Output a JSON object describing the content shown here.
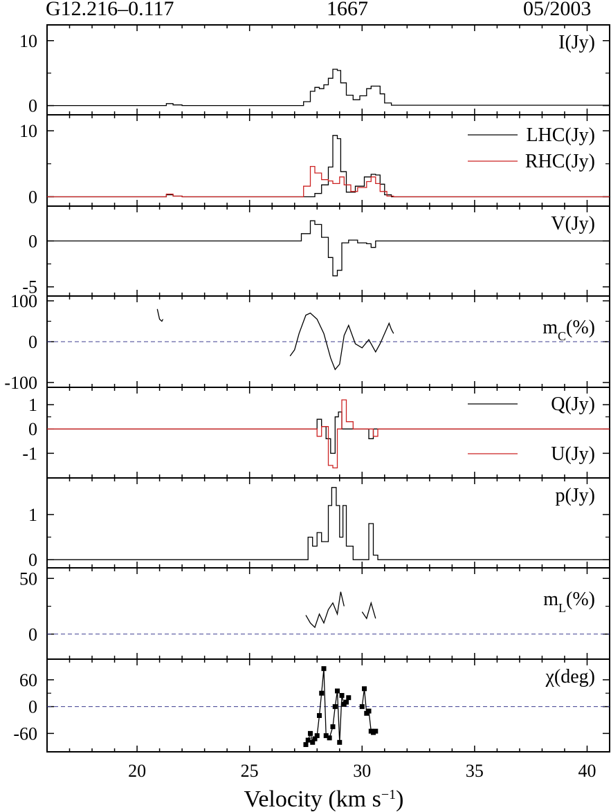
{
  "header": {
    "source": "G12.216–0.117",
    "frequency": "1667",
    "date": "05/2003"
  },
  "x_axis": {
    "label_main": "Velocity (km s",
    "label_sup": "−1",
    "label_close": ")",
    "ticks": [
      "20",
      "25",
      "30",
      "35",
      "40"
    ]
  },
  "colors": {
    "black": "#000000",
    "red": "#cc2222",
    "dash": "#3b3b8f"
  },
  "chart_data": [
    {
      "type": "line",
      "panel": "I",
      "label": "I(Jy)",
      "ylim": [
        -1,
        12
      ],
      "yticks": [
        {
          "v": 0,
          "t": "0"
        },
        {
          "v": 10,
          "t": "10"
        }
      ],
      "series": [
        {
          "name": "I(Jy)",
          "color": "black",
          "points": [
            [
              16,
              0
            ],
            [
              21,
              0
            ],
            [
              21.3,
              0.3
            ],
            [
              21.6,
              0.1
            ],
            [
              22,
              0
            ],
            [
              27,
              0
            ],
            [
              27.4,
              0.6
            ],
            [
              27.7,
              2.2
            ],
            [
              27.9,
              2.8
            ],
            [
              28.1,
              2.6
            ],
            [
              28.3,
              3.2
            ],
            [
              28.5,
              4.2
            ],
            [
              28.7,
              5.6
            ],
            [
              28.9,
              5.4
            ],
            [
              29.05,
              3.5
            ],
            [
              29.3,
              1.6
            ],
            [
              29.6,
              0.9
            ],
            [
              29.9,
              1.5
            ],
            [
              30.2,
              2.6
            ],
            [
              30.4,
              3.0
            ],
            [
              30.6,
              3.0
            ],
            [
              30.8,
              1.8
            ],
            [
              31.0,
              0.4
            ],
            [
              31.3,
              0.05
            ],
            [
              41,
              0
            ]
          ]
        }
      ],
      "hline": null
    },
    {
      "type": "line",
      "panel": "LHC-RHC",
      "ylim": [
        -1,
        12
      ],
      "yticks": [
        {
          "v": 0,
          "t": "0"
        },
        {
          "v": 10,
          "t": "10"
        }
      ],
      "series": [
        {
          "name": "LHC(Jy)",
          "color": "black",
          "points": [
            [
              16,
              0
            ],
            [
              21.1,
              0
            ],
            [
              21.3,
              0.3
            ],
            [
              21.6,
              0.1
            ],
            [
              22,
              0
            ],
            [
              27.5,
              0
            ],
            [
              27.9,
              0.5
            ],
            [
              28.2,
              1.8
            ],
            [
              28.5,
              4.5
            ],
            [
              28.7,
              9.3
            ],
            [
              28.9,
              8.8
            ],
            [
              29.05,
              3.8
            ],
            [
              29.3,
              0.7
            ],
            [
              29.7,
              1.6
            ],
            [
              30.1,
              3.0
            ],
            [
              30.4,
              3.4
            ],
            [
              30.6,
              3.3
            ],
            [
              30.8,
              1.9
            ],
            [
              31.0,
              0.3
            ],
            [
              31.3,
              0
            ],
            [
              41,
              0
            ]
          ]
        },
        {
          "name": "RHC(Jy)",
          "color": "red",
          "points": [
            [
              16,
              0
            ],
            [
              21.1,
              0
            ],
            [
              21.3,
              0.4
            ],
            [
              21.6,
              0.1
            ],
            [
              22,
              0
            ],
            [
              27,
              0
            ],
            [
              27.4,
              1.6
            ],
            [
              27.7,
              4.6
            ],
            [
              27.9,
              3.6
            ],
            [
              28.2,
              2.6
            ],
            [
              28.5,
              2.4
            ],
            [
              28.7,
              2.0
            ],
            [
              29.0,
              3.0
            ],
            [
              29.2,
              1.8
            ],
            [
              29.5,
              0.8
            ],
            [
              29.8,
              1.4
            ],
            [
              30.2,
              2.3
            ],
            [
              30.4,
              3.0
            ],
            [
              30.6,
              2.0
            ],
            [
              30.8,
              0.8
            ],
            [
              31.1,
              0.1
            ],
            [
              31.4,
              0
            ],
            [
              41,
              0
            ]
          ]
        }
      ],
      "legend": [
        {
          "name": "LHC(Jy)",
          "color": "black"
        },
        {
          "name": "RHC(Jy)",
          "color": "red"
        }
      ],
      "hline": null
    },
    {
      "type": "line",
      "panel": "V",
      "label": "V(Jy)",
      "ylim": [
        -5.7,
        3.5
      ],
      "yticks": [
        {
          "v": 0,
          "t": "0"
        },
        {
          "v": -5,
          "t": "-5"
        }
      ],
      "series": [
        {
          "name": "V(Jy)",
          "color": "black",
          "points": [
            [
              16,
              0
            ],
            [
              27,
              0
            ],
            [
              27.3,
              0.8
            ],
            [
              27.7,
              2.2
            ],
            [
              27.9,
              1.8
            ],
            [
              28.2,
              0.4
            ],
            [
              28.5,
              -1.8
            ],
            [
              28.7,
              -3.8
            ],
            [
              28.9,
              -3.2
            ],
            [
              29.1,
              -0.2
            ],
            [
              29.4,
              0.1
            ],
            [
              29.8,
              -0.2
            ],
            [
              30.2,
              -0.3
            ],
            [
              30.4,
              -0.7
            ],
            [
              30.6,
              0
            ],
            [
              41,
              0
            ]
          ]
        }
      ],
      "hline": null
    },
    {
      "type": "line",
      "panel": "mC",
      "label_main": "m",
      "label_sub": "C",
      "label_tail": "(%)",
      "ylim": [
        -105,
        105
      ],
      "yticks": [
        {
          "v": 100,
          "t": "100"
        },
        {
          "v": 0,
          "t": "0"
        },
        {
          "v": -100,
          "t": "-100"
        }
      ],
      "series": [
        {
          "name": "mC",
          "color": "black",
          "segments": [
            [
              [
                20.9,
                80
              ],
              [
                21.0,
                55
              ],
              [
                21.1,
                50
              ],
              [
                21.15,
                55
              ]
            ],
            [
              [
                26.8,
                -35
              ],
              [
                27.0,
                -20
              ],
              [
                27.2,
                20
              ],
              [
                27.5,
                65
              ],
              [
                27.7,
                70
              ],
              [
                28.0,
                55
              ],
              [
                28.3,
                20
              ],
              [
                28.6,
                -40
              ],
              [
                28.8,
                -68
              ],
              [
                29.0,
                -55
              ],
              [
                29.2,
                15
              ],
              [
                29.4,
                40
              ],
              [
                29.7,
                -5
              ],
              [
                30.0,
                -15
              ],
              [
                30.3,
                5
              ],
              [
                30.6,
                -25
              ],
              [
                30.8,
                -5
              ],
              [
                31.0,
                20
              ],
              [
                31.2,
                45
              ],
              [
                31.3,
                30
              ],
              [
                31.4,
                20
              ]
            ]
          ]
        }
      ],
      "hline": 0
    },
    {
      "type": "line",
      "panel": "QU",
      "ylim": [
        -1.9,
        1.6
      ],
      "yticks": [
        {
          "v": 1,
          "t": "1"
        },
        {
          "v": 0,
          "t": "0"
        },
        {
          "v": -1,
          "t": "-1"
        }
      ],
      "series": [
        {
          "name": "Q(Jy)",
          "color": "black",
          "points": [
            [
              16,
              0
            ],
            [
              27.7,
              0
            ],
            [
              28.0,
              0.4
            ],
            [
              28.2,
              0.1
            ],
            [
              28.4,
              -0.4
            ],
            [
              28.6,
              -1.0
            ],
            [
              28.8,
              0.5
            ],
            [
              28.95,
              0.7
            ],
            [
              29.1,
              0
            ],
            [
              30.0,
              0
            ],
            [
              30.3,
              -0.4
            ],
            [
              30.5,
              0
            ],
            [
              41,
              0
            ]
          ]
        },
        {
          "name": "U(Jy)",
          "color": "red",
          "points": [
            [
              16,
              0
            ],
            [
              27.8,
              0
            ],
            [
              28.0,
              -0.3
            ],
            [
              28.2,
              0.1
            ],
            [
              28.5,
              -1.5
            ],
            [
              28.7,
              -1.6
            ],
            [
              28.9,
              0
            ],
            [
              29.1,
              1.2
            ],
            [
              29.3,
              0.3
            ],
            [
              29.6,
              0
            ],
            [
              30.3,
              0
            ],
            [
              30.5,
              -0.3
            ],
            [
              30.7,
              0
            ],
            [
              41,
              0
            ]
          ]
        }
      ],
      "legend": [
        {
          "name": "Q(Jy)",
          "color": "black"
        },
        {
          "name": "U(Jy)",
          "color": "red"
        }
      ],
      "hline": null
    },
    {
      "type": "line",
      "panel": "p",
      "label": "p(Jy)",
      "ylim": [
        -0.12,
        1.75
      ],
      "yticks": [
        {
          "v": 1,
          "t": "1"
        },
        {
          "v": 0,
          "t": "0"
        }
      ],
      "series": [
        {
          "name": "p(Jy)",
          "color": "black",
          "points": [
            [
              16,
              0
            ],
            [
              27.4,
              0
            ],
            [
              27.6,
              0.5
            ],
            [
              27.8,
              0.3
            ],
            [
              28.0,
              0.6
            ],
            [
              28.2,
              0.4
            ],
            [
              28.5,
              1.2
            ],
            [
              28.65,
              1.6
            ],
            [
              28.85,
              1.2
            ],
            [
              29.0,
              0.5
            ],
            [
              29.15,
              1.2
            ],
            [
              29.3,
              0.3
            ],
            [
              29.6,
              0
            ],
            [
              30.0,
              0
            ],
            [
              30.3,
              0.8
            ],
            [
              30.5,
              0.1
            ],
            [
              30.7,
              0
            ],
            [
              41,
              0
            ]
          ]
        }
      ],
      "hline": null
    },
    {
      "type": "line",
      "panel": "mL",
      "label_main": "m",
      "label_sub": "L",
      "label_tail": "(%)",
      "ylim": [
        -20,
        57
      ],
      "yticks": [
        {
          "v": 50,
          "t": "50"
        },
        {
          "v": 0,
          "t": "0"
        }
      ],
      "series": [
        {
          "name": "mL",
          "color": "black",
          "segments": [
            [
              [
                27.5,
                17
              ],
              [
                27.7,
                10
              ],
              [
                27.9,
                6
              ],
              [
                28.1,
                18
              ],
              [
                28.3,
                10
              ],
              [
                28.5,
                22
              ],
              [
                28.7,
                28
              ],
              [
                28.9,
                18
              ],
              [
                29.05,
                38
              ],
              [
                29.2,
                25
              ]
            ],
            [
              [
                30.0,
                20
              ],
              [
                30.2,
                14
              ],
              [
                30.4,
                28
              ],
              [
                30.6,
                14
              ]
            ]
          ]
        }
      ],
      "hline": 0
    },
    {
      "type": "scatter",
      "panel": "chi",
      "label": "χ(deg)",
      "ylim": [
        -95,
        100
      ],
      "yticks": [
        {
          "v": 60,
          "t": "60"
        },
        {
          "v": 0,
          "t": "0"
        },
        {
          "v": -60,
          "t": "-60"
        }
      ],
      "series": [
        {
          "name": "chi",
          "color": "black",
          "segments": [
            [
              [
                27.5,
                -85
              ],
              [
                27.6,
                -75
              ],
              [
                27.7,
                -60
              ],
              [
                27.8,
                -80
              ],
              [
                27.9,
                -72
              ],
              [
                28.0,
                -65
              ],
              [
                28.1,
                -20
              ],
              [
                28.2,
                30
              ],
              [
                28.3,
                85
              ],
              [
                28.4,
                -65
              ],
              [
                28.55,
                -70
              ],
              [
                28.7,
                -45
              ],
              [
                28.8,
                0
              ],
              [
                28.9,
                35
              ],
              [
                29.0,
                -80
              ],
              [
                29.1,
                25
              ],
              [
                29.2,
                5
              ],
              [
                29.3,
                10
              ],
              [
                29.4,
                20
              ]
            ],
            [
              [
                30.0,
                0
              ],
              [
                30.1,
                40
              ],
              [
                30.2,
                -15
              ],
              [
                30.3,
                -10
              ],
              [
                30.4,
                -55
              ],
              [
                30.5,
                -58
              ],
              [
                30.6,
                -55
              ]
            ]
          ]
        }
      ],
      "hline": 0
    }
  ]
}
